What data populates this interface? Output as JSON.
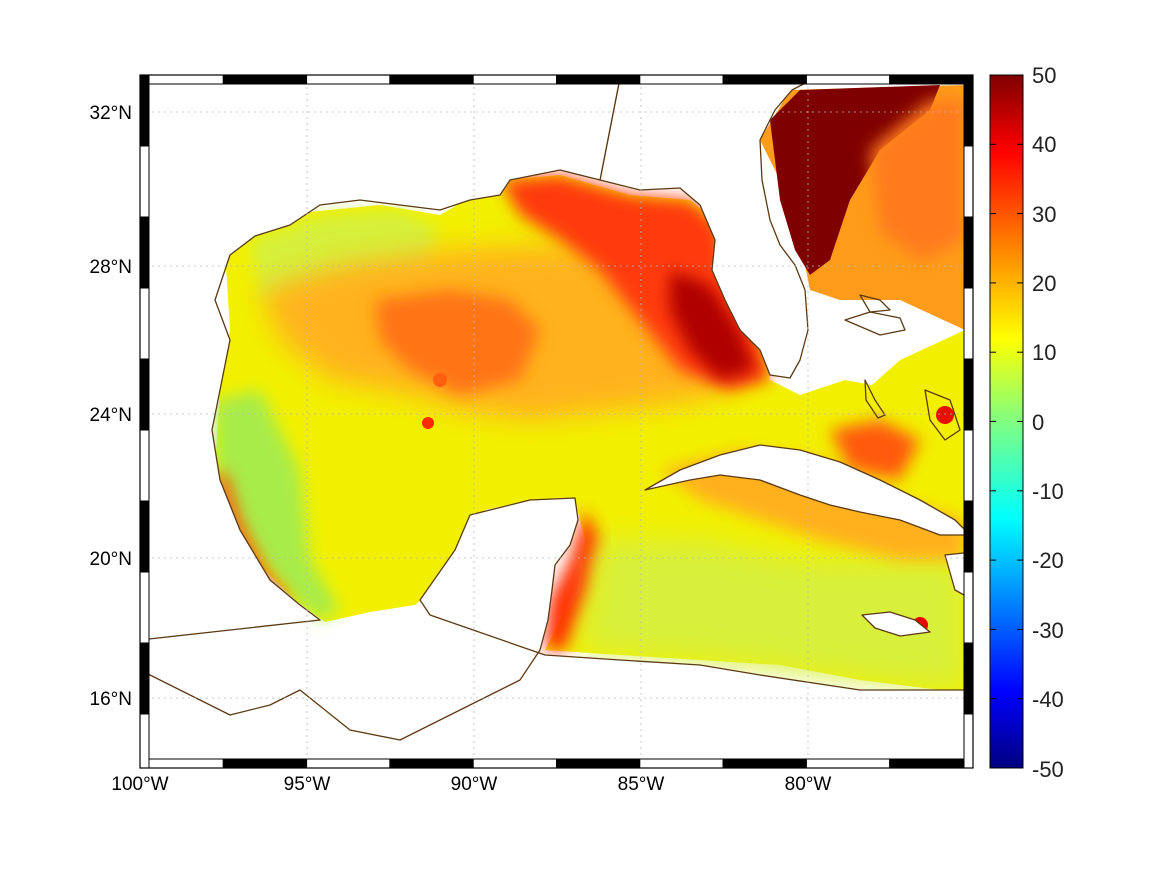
{
  "map": {
    "lon_ticks": [
      "100°W",
      "95°W",
      "90°W",
      "85°W",
      "80°W"
    ],
    "lat_ticks": [
      "32°N",
      "28°N",
      "24°N",
      "20°N",
      "16°N"
    ]
  },
  "colorbar": {
    "labels": [
      "50",
      "40",
      "30",
      "20",
      "10",
      "0",
      "-10",
      "-20",
      "-30",
      "-40",
      "-50"
    ],
    "min": -50,
    "max": 50,
    "colormap": "jet"
  },
  "colors": {
    "coastline": "#5b3a12",
    "frame": "#000000"
  }
}
